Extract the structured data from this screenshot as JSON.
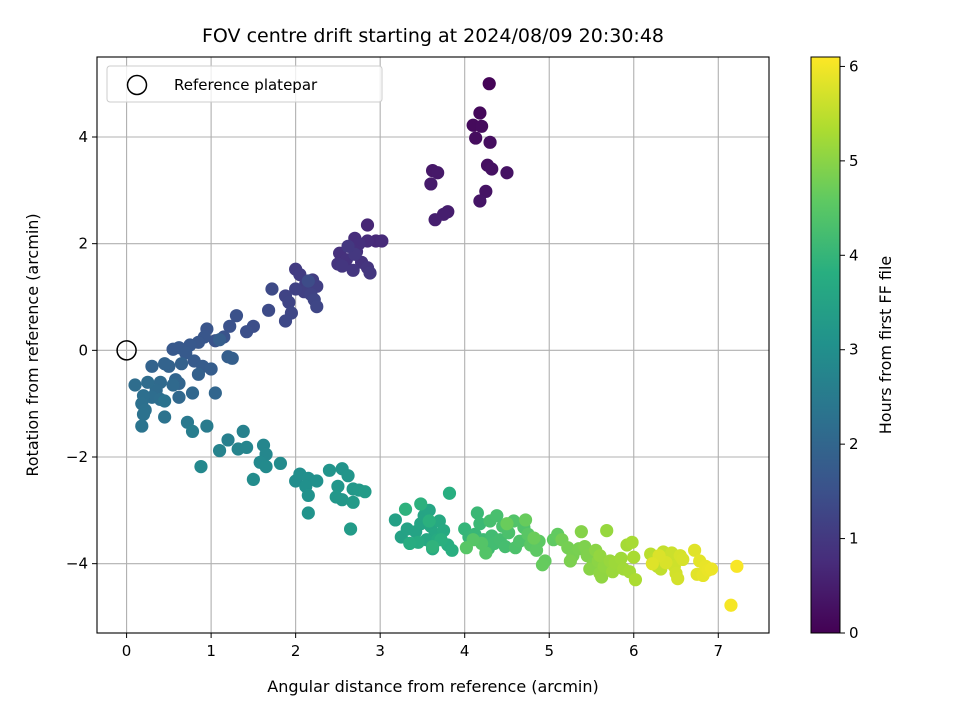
{
  "chart_data": {
    "type": "scatter",
    "title": "FOV centre drift starting at 2024/08/09 20:30:48",
    "xlabel": "Angular distance from reference (arcmin)",
    "ylabel": "Rotation from reference (arcmin)",
    "xlim": [
      -0.35,
      7.6
    ],
    "ylim": [
      -5.3,
      5.5
    ],
    "xticks": [
      0,
      1,
      2,
      3,
      4,
      5,
      6,
      7
    ],
    "yticks": [
      -4,
      -2,
      0,
      2,
      4
    ],
    "grid": true,
    "legend": {
      "position": "top-left",
      "entries": [
        "Reference platepar"
      ]
    },
    "reference_point": {
      "x": 0,
      "y": 0,
      "label": "Reference platepar"
    },
    "colorbar": {
      "label": "Hours from first FF file",
      "min": 0,
      "max": 6.1,
      "ticks": [
        0,
        1,
        2,
        3,
        4,
        5,
        6
      ],
      "colormap": "viridis"
    },
    "columns": [
      "x",
      "y",
      "hours"
    ],
    "points": [
      [
        4.29,
        5.0,
        0.05
      ],
      [
        4.18,
        4.45,
        0.12
      ],
      [
        4.1,
        4.22,
        0.15
      ],
      [
        4.2,
        4.2,
        0.18
      ],
      [
        4.13,
        3.98,
        0.2
      ],
      [
        4.3,
        3.9,
        0.22
      ],
      [
        4.27,
        3.47,
        0.25
      ],
      [
        4.32,
        3.4,
        0.27
      ],
      [
        4.5,
        3.33,
        0.3
      ],
      [
        4.25,
        2.98,
        0.32
      ],
      [
        4.18,
        2.8,
        0.35
      ],
      [
        3.62,
        3.37,
        0.4
      ],
      [
        3.68,
        3.33,
        0.42
      ],
      [
        3.6,
        3.12,
        0.45
      ],
      [
        3.8,
        2.6,
        0.48
      ],
      [
        3.75,
        2.55,
        0.5
      ],
      [
        3.65,
        2.45,
        0.52
      ],
      [
        2.85,
        2.35,
        0.65
      ],
      [
        2.95,
        2.05,
        0.7
      ],
      [
        3.02,
        2.05,
        0.72
      ],
      [
        2.85,
        2.05,
        0.75
      ],
      [
        2.7,
        2.1,
        0.78
      ],
      [
        2.75,
        2.0,
        0.8
      ],
      [
        2.72,
        1.85,
        0.83
      ],
      [
        2.52,
        1.82,
        0.85
      ],
      [
        2.6,
        1.7,
        0.87
      ],
      [
        2.78,
        1.65,
        0.88
      ],
      [
        2.5,
        1.62,
        0.9
      ],
      [
        2.85,
        1.55,
        0.92
      ],
      [
        2.68,
        1.5,
        0.94
      ],
      [
        2.55,
        1.58,
        0.95
      ],
      [
        2.88,
        1.45,
        0.97
      ],
      [
        2.7,
        1.8,
        0.98
      ],
      [
        2.62,
        1.95,
        0.99
      ],
      [
        2.0,
        1.52,
        1.05
      ],
      [
        2.05,
        1.42,
        1.08
      ],
      [
        2.2,
        1.32,
        1.1
      ],
      [
        2.12,
        1.25,
        1.12
      ],
      [
        2.25,
        1.2,
        1.14
      ],
      [
        2.1,
        1.1,
        1.16
      ],
      [
        2.0,
        1.15,
        1.18
      ],
      [
        2.18,
        1.05,
        1.2
      ],
      [
        1.88,
        1.02,
        1.22
      ],
      [
        1.92,
        0.9,
        1.24
      ],
      [
        2.22,
        0.95,
        1.26
      ],
      [
        2.25,
        0.82,
        1.28
      ],
      [
        1.95,
        0.7,
        1.3
      ],
      [
        1.88,
        0.55,
        1.32
      ],
      [
        1.72,
        1.15,
        1.35
      ],
      [
        1.68,
        0.75,
        1.38
      ],
      [
        2.15,
        1.3,
        1.4
      ],
      [
        1.5,
        0.45,
        1.45
      ],
      [
        1.42,
        0.35,
        1.48
      ],
      [
        1.3,
        0.65,
        1.5
      ],
      [
        1.22,
        0.45,
        1.53
      ],
      [
        1.15,
        0.25,
        1.56
      ],
      [
        1.05,
        0.18,
        1.58
      ],
      [
        0.95,
        0.4,
        1.6
      ],
      [
        0.92,
        0.25,
        1.62
      ],
      [
        0.85,
        0.15,
        1.64
      ],
      [
        0.75,
        0.1,
        1.66
      ],
      [
        0.62,
        0.05,
        1.68
      ],
      [
        0.55,
        0.02,
        1.7
      ],
      [
        0.7,
        -0.05,
        1.72
      ],
      [
        0.8,
        -0.2,
        1.74
      ],
      [
        0.9,
        -0.3,
        1.76
      ],
      [
        1.0,
        -0.35,
        1.78
      ],
      [
        1.1,
        0.2,
        1.8
      ],
      [
        1.2,
        -0.12,
        1.82
      ],
      [
        1.25,
        -0.15,
        1.84
      ],
      [
        0.85,
        -0.45,
        1.86
      ],
      [
        0.65,
        -0.25,
        1.88
      ],
      [
        0.5,
        -0.3,
        1.9
      ],
      [
        0.45,
        -0.25,
        1.92
      ],
      [
        0.3,
        -0.3,
        1.94
      ],
      [
        0.58,
        -0.55,
        1.96
      ],
      [
        0.62,
        -0.62,
        1.98
      ],
      [
        1.05,
        -0.8,
        2.0
      ],
      [
        0.78,
        -0.8,
        2.02
      ],
      [
        0.62,
        -0.88,
        2.05
      ],
      [
        0.55,
        -0.65,
        2.08
      ],
      [
        0.4,
        -0.6,
        2.1
      ],
      [
        0.35,
        -0.75,
        2.12
      ],
      [
        0.25,
        -0.6,
        2.14
      ],
      [
        0.1,
        -0.65,
        2.16
      ],
      [
        0.3,
        -0.88,
        2.18
      ],
      [
        0.4,
        -0.92,
        2.2
      ],
      [
        0.2,
        -0.85,
        2.22
      ],
      [
        0.18,
        -1.0,
        2.24
      ],
      [
        0.22,
        -1.12,
        2.26
      ],
      [
        0.2,
        -1.2,
        2.28
      ],
      [
        0.45,
        -0.95,
        2.3
      ],
      [
        0.45,
        -1.25,
        2.32
      ],
      [
        0.18,
        -1.42,
        2.34
      ],
      [
        0.72,
        -1.35,
        2.45
      ],
      [
        0.95,
        -1.42,
        2.5
      ],
      [
        0.78,
        -1.52,
        2.55
      ],
      [
        1.2,
        -1.68,
        2.6
      ],
      [
        1.38,
        -1.52,
        2.65
      ],
      [
        1.1,
        -1.88,
        2.7
      ],
      [
        1.32,
        -1.85,
        2.72
      ],
      [
        1.42,
        -1.82,
        2.75
      ],
      [
        1.62,
        -1.78,
        2.78
      ],
      [
        1.65,
        -1.95,
        2.8
      ],
      [
        0.88,
        -2.18,
        2.82
      ],
      [
        1.58,
        -2.1,
        2.85
      ],
      [
        1.65,
        -2.18,
        2.88
      ],
      [
        1.82,
        -2.12,
        2.9
      ],
      [
        1.5,
        -2.42,
        2.93
      ],
      [
        2.0,
        -2.45,
        2.96
      ],
      [
        2.05,
        -2.32,
        2.98
      ],
      [
        2.15,
        -2.4,
        3.0
      ],
      [
        2.12,
        -2.55,
        3.02
      ],
      [
        2.25,
        -2.45,
        3.05
      ],
      [
        2.15,
        -2.72,
        3.08
      ],
      [
        2.15,
        -3.05,
        3.1
      ],
      [
        2.4,
        -2.25,
        3.12
      ],
      [
        2.55,
        -2.22,
        3.14
      ],
      [
        2.62,
        -2.35,
        3.16
      ],
      [
        2.5,
        -2.55,
        3.18
      ],
      [
        2.48,
        -2.75,
        3.2
      ],
      [
        2.55,
        -2.8,
        3.22
      ],
      [
        2.68,
        -2.6,
        3.24
      ],
      [
        2.75,
        -2.62,
        3.26
      ],
      [
        2.68,
        -2.85,
        3.28
      ],
      [
        2.65,
        -3.35,
        3.3
      ],
      [
        2.82,
        -2.65,
        3.32
      ],
      [
        3.18,
        -3.18,
        3.45
      ],
      [
        3.25,
        -3.5,
        3.48
      ],
      [
        3.32,
        -3.35,
        3.5
      ],
      [
        3.42,
        -3.4,
        3.52
      ],
      [
        3.48,
        -3.25,
        3.54
      ],
      [
        3.52,
        -3.1,
        3.56
      ],
      [
        3.58,
        -3.0,
        3.58
      ],
      [
        3.6,
        -3.3,
        3.6
      ],
      [
        3.65,
        -3.45,
        3.62
      ],
      [
        3.55,
        -3.55,
        3.64
      ],
      [
        3.7,
        -3.2,
        3.66
      ],
      [
        3.75,
        -3.38,
        3.68
      ],
      [
        3.62,
        -3.72,
        3.7
      ],
      [
        3.68,
        -3.55,
        3.72
      ],
      [
        3.45,
        -3.6,
        3.74
      ],
      [
        3.35,
        -3.62,
        3.76
      ],
      [
        3.8,
        -3.65,
        3.78
      ],
      [
        3.82,
        -2.68,
        3.8
      ],
      [
        3.85,
        -3.75,
        3.82
      ],
      [
        3.72,
        -3.55,
        3.84
      ],
      [
        3.58,
        -3.2,
        3.86
      ],
      [
        3.48,
        -2.88,
        3.88
      ],
      [
        3.3,
        -2.98,
        3.9
      ],
      [
        3.62,
        -3.68,
        3.92
      ],
      [
        4.0,
        -3.35,
        4.0
      ],
      [
        4.05,
        -3.5,
        4.02
      ],
      [
        4.12,
        -3.45,
        4.05
      ],
      [
        4.15,
        -3.05,
        4.08
      ],
      [
        4.18,
        -3.25,
        4.1
      ],
      [
        4.22,
        -3.55,
        4.12
      ],
      [
        4.28,
        -3.72,
        4.15
      ],
      [
        4.32,
        -3.48,
        4.18
      ],
      [
        4.35,
        -3.62,
        4.2
      ],
      [
        4.42,
        -3.55,
        4.22
      ],
      [
        4.48,
        -3.68,
        4.24
      ],
      [
        4.3,
        -3.2,
        4.26
      ],
      [
        4.38,
        -3.1,
        4.28
      ],
      [
        4.45,
        -3.3,
        4.3
      ],
      [
        4.52,
        -3.42,
        4.32
      ],
      [
        4.6,
        -3.7,
        4.34
      ],
      [
        4.65,
        -3.58,
        4.36
      ],
      [
        4.7,
        -3.32,
        4.38
      ],
      [
        4.58,
        -3.2,
        4.4
      ],
      [
        4.25,
        -3.8,
        4.42
      ],
      [
        4.2,
        -3.62,
        4.44
      ],
      [
        4.1,
        -3.55,
        4.46
      ],
      [
        4.02,
        -3.7,
        4.48
      ],
      [
        4.75,
        -3.45,
        4.5
      ],
      [
        4.78,
        -3.65,
        4.52
      ],
      [
        4.88,
        -3.58,
        4.54
      ],
      [
        4.85,
        -3.75,
        4.56
      ],
      [
        5.05,
        -3.55,
        4.58
      ],
      [
        5.1,
        -3.45,
        4.6
      ],
      [
        4.95,
        -3.95,
        4.62
      ],
      [
        4.92,
        -4.02,
        4.64
      ],
      [
        4.72,
        -3.18,
        4.66
      ],
      [
        4.5,
        -3.25,
        4.68
      ],
      [
        4.82,
        -3.52,
        4.7
      ],
      [
        5.15,
        -3.55,
        4.78
      ],
      [
        5.22,
        -3.7,
        4.8
      ],
      [
        5.28,
        -3.85,
        4.82
      ],
      [
        5.35,
        -3.72,
        4.84
      ],
      [
        5.25,
        -3.95,
        4.86
      ],
      [
        5.42,
        -3.68,
        4.88
      ],
      [
        5.45,
        -3.85,
        4.9
      ],
      [
        5.52,
        -4.0,
        4.92
      ],
      [
        5.38,
        -3.4,
        4.95
      ],
      [
        5.48,
        -4.1,
        4.98
      ],
      [
        5.55,
        -3.75,
        5.0
      ],
      [
        5.58,
        -3.95,
        5.02
      ],
      [
        5.6,
        -4.18,
        5.04
      ],
      [
        5.62,
        -4.25,
        5.06
      ],
      [
        5.65,
        -4.05,
        5.08
      ],
      [
        5.6,
        -3.85,
        5.1
      ],
      [
        5.68,
        -3.38,
        5.12
      ],
      [
        5.72,
        -3.95,
        5.14
      ],
      [
        5.75,
        -4.15,
        5.16
      ],
      [
        5.78,
        -3.98,
        5.18
      ],
      [
        5.85,
        -3.9,
        5.2
      ],
      [
        5.88,
        -4.1,
        5.22
      ],
      [
        5.95,
        -4.15,
        5.24
      ],
      [
        5.92,
        -3.65,
        5.26
      ],
      [
        5.98,
        -3.6,
        5.28
      ],
      [
        6.0,
        -3.88,
        5.3
      ],
      [
        6.02,
        -4.3,
        5.32
      ],
      [
        6.2,
        -3.82,
        5.45
      ],
      [
        6.25,
        -3.9,
        5.48
      ],
      [
        6.28,
        -4.05,
        5.5
      ],
      [
        6.32,
        -4.1,
        5.52
      ],
      [
        6.35,
        -3.78,
        5.55
      ],
      [
        6.4,
        -3.88,
        5.58
      ],
      [
        6.42,
        -3.95,
        5.6
      ],
      [
        6.45,
        -3.8,
        5.62
      ],
      [
        6.48,
        -4.05,
        5.65
      ],
      [
        6.5,
        -4.18,
        5.68
      ],
      [
        6.52,
        -4.28,
        5.7
      ],
      [
        6.55,
        -3.85,
        5.72
      ],
      [
        6.58,
        -3.92,
        5.74
      ],
      [
        6.38,
        -3.98,
        5.76
      ],
      [
        6.3,
        -3.85,
        5.78
      ],
      [
        6.22,
        -4.0,
        5.8
      ],
      [
        6.72,
        -3.75,
        5.82
      ],
      [
        6.75,
        -4.2,
        5.84
      ],
      [
        6.78,
        -3.95,
        5.86
      ],
      [
        6.82,
        -4.22,
        5.88
      ],
      [
        6.85,
        -4.05,
        5.9
      ],
      [
        6.88,
        -4.12,
        5.92
      ],
      [
        6.92,
        -4.1,
        5.94
      ],
      [
        7.15,
        -4.78,
        6.02
      ],
      [
        7.22,
        -4.05,
        6.05
      ]
    ]
  }
}
